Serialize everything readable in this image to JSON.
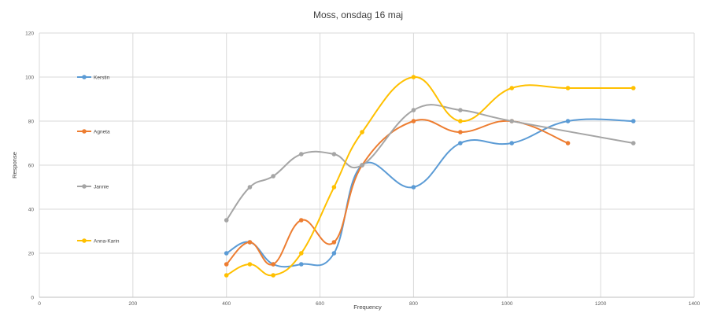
{
  "chart_data": {
    "type": "line",
    "title": "Moss, onsdag 16 maj",
    "xlabel": "Frequency",
    "ylabel": "Response",
    "xlim": [
      0,
      1400
    ],
    "ylim": [
      0,
      120
    ],
    "xticks": [
      0,
      200,
      400,
      600,
      800,
      1000,
      1200,
      1400
    ],
    "yticks": [
      0,
      20,
      40,
      60,
      80,
      100,
      120
    ],
    "grid": true,
    "legend_position": "left",
    "smooth": true,
    "series": [
      {
        "name": "Kerstin",
        "color": "#5b9bd5",
        "points": [
          [
            400,
            20
          ],
          [
            450,
            25
          ],
          [
            500,
            15
          ],
          [
            560,
            15
          ],
          [
            630,
            20
          ],
          [
            690,
            60
          ],
          [
            800,
            50
          ],
          [
            900,
            70
          ],
          [
            1010,
            70
          ],
          [
            1130,
            80
          ],
          [
            1270,
            80
          ]
        ]
      },
      {
        "name": "Agneta",
        "color": "#ed7d31",
        "points": [
          [
            400,
            15
          ],
          [
            450,
            25
          ],
          [
            500,
            15
          ],
          [
            560,
            35
          ],
          [
            630,
            25
          ],
          [
            690,
            60
          ],
          [
            800,
            80
          ],
          [
            900,
            75
          ],
          [
            1010,
            80
          ],
          [
            1130,
            70
          ]
        ]
      },
      {
        "name": "Jannie",
        "color": "#a5a5a5",
        "points": [
          [
            400,
            35
          ],
          [
            450,
            50
          ],
          [
            500,
            55
          ],
          [
            560,
            65
          ],
          [
            630,
            65
          ],
          [
            690,
            60
          ],
          [
            800,
            85
          ],
          [
            900,
            85
          ],
          [
            1010,
            80
          ],
          [
            1270,
            70
          ]
        ]
      },
      {
        "name": "Anna-Karin",
        "color": "#ffc000",
        "points": [
          [
            400,
            10
          ],
          [
            450,
            15
          ],
          [
            500,
            10
          ],
          [
            560,
            20
          ],
          [
            630,
            50
          ],
          [
            690,
            75
          ],
          [
            800,
            100
          ],
          [
            900,
            80
          ],
          [
            1010,
            95
          ],
          [
            1130,
            95
          ],
          [
            1270,
            95
          ]
        ]
      }
    ]
  }
}
